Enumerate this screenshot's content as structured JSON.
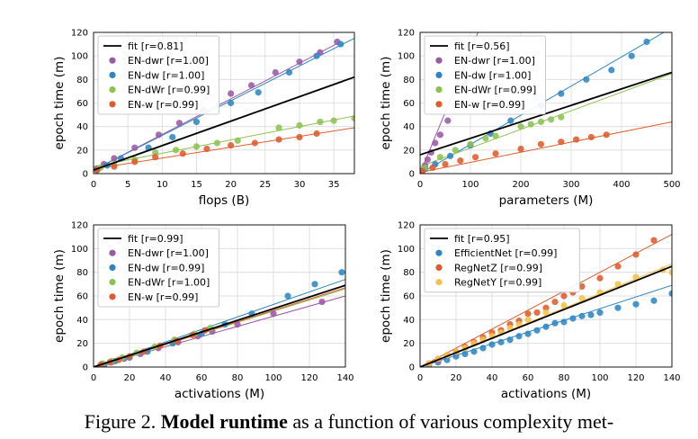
{
  "caption": {
    "label": "Figure 2.",
    "bold": "Model runtime",
    "rest": " as a function of various complexity met-"
  },
  "colors": {
    "fit": "#000000",
    "purple": "#9b59a6",
    "blue": "#2e86c1",
    "green": "#8cc152",
    "orange": "#dd5c2e",
    "yellow": "#f2c14e"
  },
  "chart_data": [
    {
      "type": "scatter",
      "xlabel": "flops (B)",
      "ylabel": "epoch time (m)",
      "xlim": [
        0,
        38
      ],
      "ylim": [
        0,
        120
      ],
      "xticks": [
        0,
        5,
        10,
        15,
        20,
        25,
        30,
        35
      ],
      "yticks": [
        0,
        20,
        40,
        60,
        80,
        100,
        120
      ],
      "grid": true,
      "legend": "top-left",
      "fit": {
        "name": "fit [r=0.81]",
        "x": [
          0,
          38
        ],
        "y": [
          3,
          82
        ]
      },
      "series": [
        {
          "name": "EN-dwr [r=1.00]",
          "color": "purple",
          "x": [
            0.5,
            1.5,
            3,
            6,
            9.5,
            12.5,
            16,
            20,
            23,
            26.5,
            30,
            33,
            35.5
          ],
          "y": [
            4,
            8,
            13,
            22,
            33,
            43,
            54,
            68,
            75,
            86,
            95,
            103,
            112
          ],
          "line": {
            "x": [
              0,
              36
            ],
            "y": [
              3,
              112
            ]
          }
        },
        {
          "name": "EN-dw [r=1.00]",
          "color": "blue",
          "x": [
            0.5,
            2,
            4,
            8,
            11.5,
            15,
            20,
            24,
            28.5,
            32.5,
            36
          ],
          "y": [
            3,
            7,
            13,
            22,
            31,
            44,
            60,
            69,
            86,
            100,
            110
          ],
          "line": {
            "x": [
              0,
              38
            ],
            "y": [
              3,
              115
            ]
          }
        },
        {
          "name": "EN-dWr [r=0.99]",
          "color": "green",
          "x": [
            1,
            3,
            6,
            9,
            12,
            15,
            18,
            21,
            27,
            30,
            33,
            35,
            38
          ],
          "y": [
            5,
            8,
            12,
            18,
            20,
            23,
            26,
            28,
            39,
            41,
            44,
            45,
            47
          ],
          "line": {
            "x": [
              0,
              38
            ],
            "y": [
              6,
              49
            ]
          }
        },
        {
          "name": "EN-w [r=0.99]",
          "color": "orange",
          "x": [
            0.5,
            3,
            6,
            9,
            13,
            16.5,
            20,
            23.5,
            27,
            30,
            32.5
          ],
          "y": [
            3,
            6,
            10,
            14,
            17,
            21,
            24,
            26,
            29,
            31,
            34
          ],
          "line": {
            "x": [
              0,
              38
            ],
            "y": [
              4,
              39
            ]
          }
        }
      ]
    },
    {
      "type": "scatter",
      "xlabel": "parameters (M)",
      "ylabel": "epoch time (m)",
      "xlim": [
        0,
        500
      ],
      "ylim": [
        0,
        120
      ],
      "xticks": [
        0,
        100,
        200,
        300,
        400,
        500
      ],
      "yticks": [
        0,
        20,
        40,
        60,
        80,
        100,
        120
      ],
      "grid": true,
      "legend": "top-left",
      "fit": {
        "name": "fit [r=0.56]",
        "x": [
          0,
          500
        ],
        "y": [
          16,
          86
        ]
      },
      "series": [
        {
          "name": "EN-dwr [r=1.00]",
          "color": "purple",
          "x": [
            5,
            10,
            15,
            22,
            30,
            40,
            55,
            70,
            90,
            100
          ],
          "y": [
            3,
            7,
            12,
            18,
            26,
            33,
            45,
            58,
            78,
            100
          ],
          "line": {
            "x": [
              0,
              115
            ],
            "y": [
              0,
              120
            ]
          }
        },
        {
          "name": "EN-dw [r=1.00]",
          "color": "blue",
          "x": [
            10,
            30,
            60,
            100,
            140,
            180,
            240,
            280,
            330,
            380,
            420,
            450
          ],
          "y": [
            4,
            8,
            15,
            24,
            34,
            45,
            58,
            68,
            80,
            88,
            100,
            112
          ],
          "line": {
            "x": [
              0,
              500
            ],
            "y": [
              0,
              124
            ]
          }
        },
        {
          "name": "EN-dWr [r=0.99]",
          "color": "green",
          "x": [
            10,
            40,
            70,
            100,
            130,
            150,
            200,
            220,
            240,
            260,
            280
          ],
          "y": [
            5,
            14,
            20,
            25,
            30,
            32,
            40,
            42,
            44,
            46,
            48
          ],
          "line": {
            "x": [
              0,
              500
            ],
            "y": [
              6,
              85
            ]
          }
        },
        {
          "name": "EN-w [r=0.99]",
          "color": "orange",
          "x": [
            5,
            25,
            50,
            80,
            110,
            150,
            200,
            240,
            280,
            310,
            340,
            370
          ],
          "y": [
            2,
            5,
            8,
            11,
            14,
            17,
            21,
            25,
            27,
            29,
            31,
            33
          ],
          "line": {
            "x": [
              0,
              500
            ],
            "y": [
              1,
              44
            ]
          }
        }
      ]
    },
    {
      "type": "scatter",
      "xlabel": "activations (M)",
      "ylabel": "epoch time (m)",
      "xlim": [
        0,
        140
      ],
      "ylim": [
        0,
        120
      ],
      "xticks": [
        0,
        20,
        40,
        60,
        80,
        100,
        120,
        140
      ],
      "yticks": [
        0,
        20,
        40,
        60,
        80,
        100,
        120
      ],
      "grid": true,
      "legend": "top-left",
      "fit": {
        "name": "fit [r=0.99]",
        "x": [
          0,
          140
        ],
        "y": [
          0,
          69
        ]
      },
      "series": [
        {
          "name": "EN-dwr [r=1.00]",
          "color": "purple",
          "x": [
            5,
            10,
            17,
            26,
            36,
            47,
            58,
            66,
            80,
            100,
            127
          ],
          "y": [
            2,
            4,
            7,
            11,
            16,
            21,
            26,
            30,
            36,
            45,
            55
          ],
          "line": {
            "x": [
              0,
              140
            ],
            "y": [
              0,
              60
            ]
          }
        },
        {
          "name": "EN-dw [r=0.99]",
          "color": "blue",
          "x": [
            6,
            12,
            20,
            30,
            44,
            60,
            73,
            88,
            108,
            123,
            138
          ],
          "y": [
            2,
            5,
            8,
            13,
            20,
            28,
            36,
            45,
            60,
            70,
            80
          ],
          "line": {
            "x": [
              0,
              140
            ],
            "y": [
              0,
              74
            ]
          }
        },
        {
          "name": "EN-dWr [r=1.00]",
          "color": "green",
          "x": [
            5,
            10,
            16,
            24,
            34,
            45,
            56,
            65
          ],
          "y": [
            3,
            5,
            8,
            12,
            17,
            23,
            28,
            33
          ],
          "line": {
            "x": [
              0,
              140
            ],
            "y": [
              0,
              66
            ]
          }
        },
        {
          "name": "EN-w [r=0.99]",
          "color": "orange",
          "x": [
            4,
            9,
            14,
            20,
            28,
            37,
            46,
            55,
            62
          ],
          "y": [
            2,
            4,
            6,
            9,
            13,
            18,
            22,
            27,
            31
          ],
          "line": {
            "x": [
              0,
              140
            ],
            "y": [
              0,
              67
            ]
          }
        }
      ]
    },
    {
      "type": "scatter",
      "xlabel": "activations (M)",
      "ylabel": "epoch time (m)",
      "xlim": [
        0,
        140
      ],
      "ylim": [
        0,
        120
      ],
      "xticks": [
        0,
        20,
        40,
        60,
        80,
        100,
        120,
        140
      ],
      "yticks": [
        0,
        20,
        40,
        60,
        80,
        100,
        120
      ],
      "grid": true,
      "legend": "top-left",
      "fit": {
        "name": "fit [r=0.95]",
        "x": [
          0,
          140
        ],
        "y": [
          0,
          85
        ]
      },
      "series": [
        {
          "name": "EfficientNet [r=0.99]",
          "color": "blue",
          "x": [
            5,
            10,
            15,
            20,
            25,
            30,
            35,
            40,
            45,
            50,
            55,
            60,
            65,
            70,
            75,
            80,
            85,
            90,
            95,
            100,
            110,
            120,
            130,
            140
          ],
          "y": [
            2,
            4,
            6,
            9,
            11,
            13,
            16,
            19,
            21,
            23,
            26,
            28,
            31,
            34,
            37,
            38,
            41,
            43,
            44,
            46,
            50,
            53,
            56,
            62
          ],
          "line": {
            "x": [
              0,
              140
            ],
            "y": [
              0,
              69
            ]
          }
        },
        {
          "name": "RegNetZ [r=0.99]",
          "color": "orange",
          "x": [
            5,
            10,
            15,
            20,
            25,
            30,
            35,
            40,
            45,
            50,
            55,
            60,
            65,
            70,
            75,
            80,
            85,
            90,
            100,
            110,
            120,
            130
          ],
          "y": [
            3,
            6,
            10,
            13,
            17,
            21,
            25,
            29,
            31,
            36,
            39,
            45,
            46,
            50,
            55,
            60,
            63,
            68,
            75,
            85,
            95,
            107
          ],
          "line": {
            "x": [
              0,
              140
            ],
            "y": [
              0,
              112
            ]
          }
        },
        {
          "name": "RegNetY [r=0.99]",
          "color": "yellow",
          "x": [
            5,
            10,
            15,
            20,
            25,
            30,
            35,
            40,
            45,
            50,
            55,
            60,
            70,
            80,
            90,
            100,
            110,
            120,
            135,
            140
          ],
          "y": [
            3,
            7,
            10,
            13,
            16,
            20,
            23,
            26,
            29,
            33,
            36,
            40,
            46,
            52,
            58,
            63,
            70,
            76,
            82,
            80
          ],
          "line": {
            "x": [
              0,
              140
            ],
            "y": [
              0,
              87
            ]
          }
        }
      ]
    }
  ]
}
